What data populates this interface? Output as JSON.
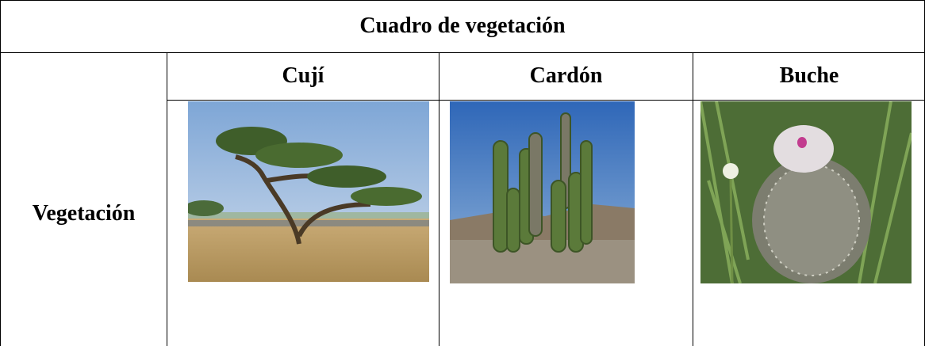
{
  "table": {
    "title": "Cuadro de vegetación",
    "header": [
      "Cují",
      "Cardón",
      "Buche"
    ],
    "row_label": "Vegetación"
  }
}
